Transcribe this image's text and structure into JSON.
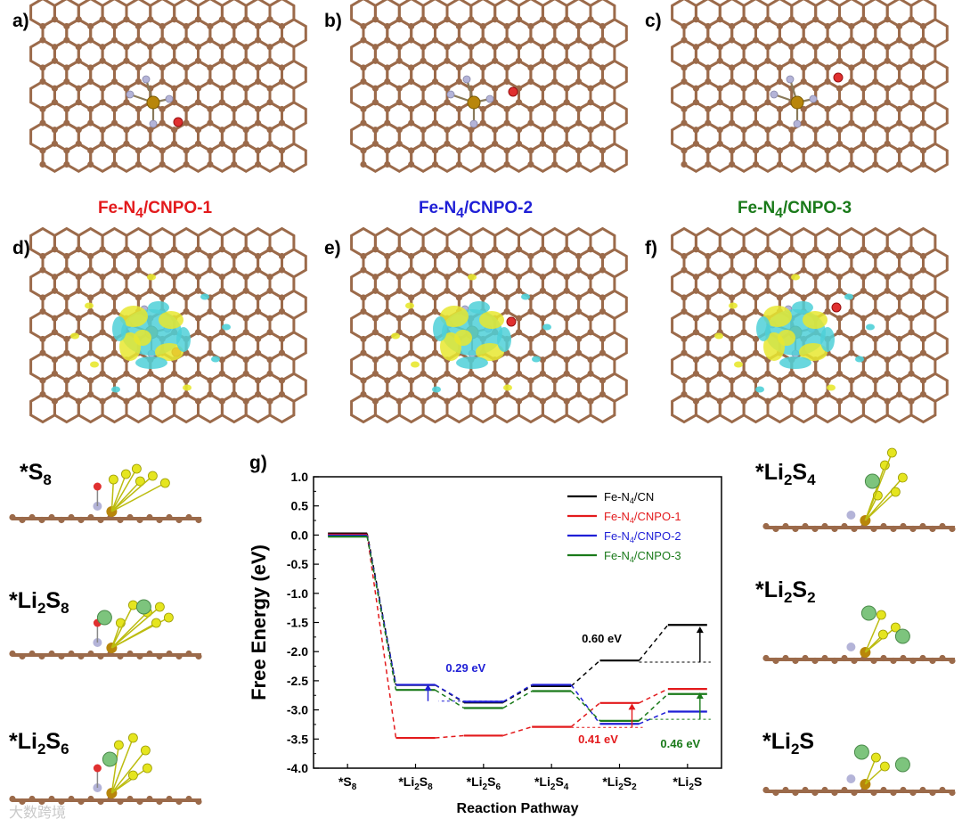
{
  "panel_labels": {
    "a": "a)",
    "b": "b)",
    "c": "c)",
    "d": "d)",
    "e": "e)",
    "f": "f)",
    "g": "g)"
  },
  "captions": [
    {
      "pre": "Fe-N",
      "sub": "4",
      "post": "/CNPO-1",
      "color": "#e31a1c"
    },
    {
      "pre": "Fe-N",
      "sub": "4",
      "post": "/CNPO-2",
      "color": "#1f1fd6"
    },
    {
      "pre": "Fe-N",
      "sub": "4",
      "post": "/CNPO-3",
      "color": "#1a7a1a"
    }
  ],
  "species_left": [
    {
      "parts": [
        "*S",
        "8"
      ]
    },
    {
      "parts": [
        "*Li",
        "2",
        "S",
        "8"
      ]
    },
    {
      "parts": [
        "*Li",
        "2",
        "S",
        "6"
      ]
    }
  ],
  "species_right": [
    {
      "parts": [
        "*Li",
        "2",
        "S",
        "4"
      ]
    },
    {
      "parts": [
        "*Li",
        "2",
        "S",
        "2"
      ]
    },
    {
      "parts": [
        "*Li",
        "2",
        "S"
      ]
    }
  ],
  "watermark": "大数跨境",
  "colors": {
    "carbon": "#9b6a4a",
    "nitrogen": "#b4b4d8",
    "iron": "#b8860b",
    "oxygen": "#e03030",
    "cyan": "#4fd0d8",
    "yellow": "#e8e830",
    "sulfur": "#e5e51f",
    "lithium": "#7dc47d"
  },
  "chart_data": {
    "type": "line",
    "ylabel": "Free Energy (eV)",
    "xlabel": "Reaction Pathway",
    "ylim": [
      -4.0,
      1.0
    ],
    "yticks": [
      "1.0",
      "0.5",
      "0.0",
      "-0.5",
      "-1.0",
      "-1.5",
      "-2.0",
      "-2.5",
      "-3.0",
      "-3.5",
      "-4.0"
    ],
    "categories": [
      {
        "parts": [
          "*S",
          "8"
        ]
      },
      {
        "parts": [
          "*Li",
          "2",
          "S",
          "8"
        ]
      },
      {
        "parts": [
          "*Li",
          "2",
          "S",
          "6"
        ]
      },
      {
        "parts": [
          "*Li",
          "2",
          "S",
          "4"
        ]
      },
      {
        "parts": [
          "*Li",
          "2",
          "S",
          "2"
        ]
      },
      {
        "parts": [
          "*Li",
          "2",
          "S"
        ]
      }
    ],
    "series": [
      {
        "name_parts": [
          "Fe-N",
          "4",
          "/CN"
        ],
        "color": "#000000",
        "values": [
          0.0,
          -2.6,
          -2.9,
          -2.62,
          -2.18,
          -1.57
        ]
      },
      {
        "name_parts": [
          "Fe-N",
          "4",
          "/CNPO-1"
        ],
        "color": "#e31a1c",
        "values": [
          0.0,
          -3.49,
          -3.45,
          -3.3,
          -2.89,
          -2.65
        ]
      },
      {
        "name_parts": [
          "Fe-N",
          "4",
          "/CNPO-2"
        ],
        "color": "#1f1fd6",
        "values": [
          0.0,
          -2.56,
          -2.85,
          -2.56,
          -3.23,
          -3.02
        ]
      },
      {
        "name_parts": [
          "Fe-N",
          "4",
          "/CNPO-3"
        ],
        "color": "#1a7a1a",
        "values": [
          0.0,
          -2.63,
          -2.94,
          -2.65,
          -3.16,
          -2.7
        ]
      }
    ],
    "annotations": [
      {
        "text": "0.29 eV",
        "color": "#1f1fd6"
      },
      {
        "text": "0.60 eV",
        "color": "#000000"
      },
      {
        "text": "0.41 eV",
        "color": "#e31a1c"
      },
      {
        "text": "0.46 eV",
        "color": "#1a7a1a"
      }
    ]
  }
}
